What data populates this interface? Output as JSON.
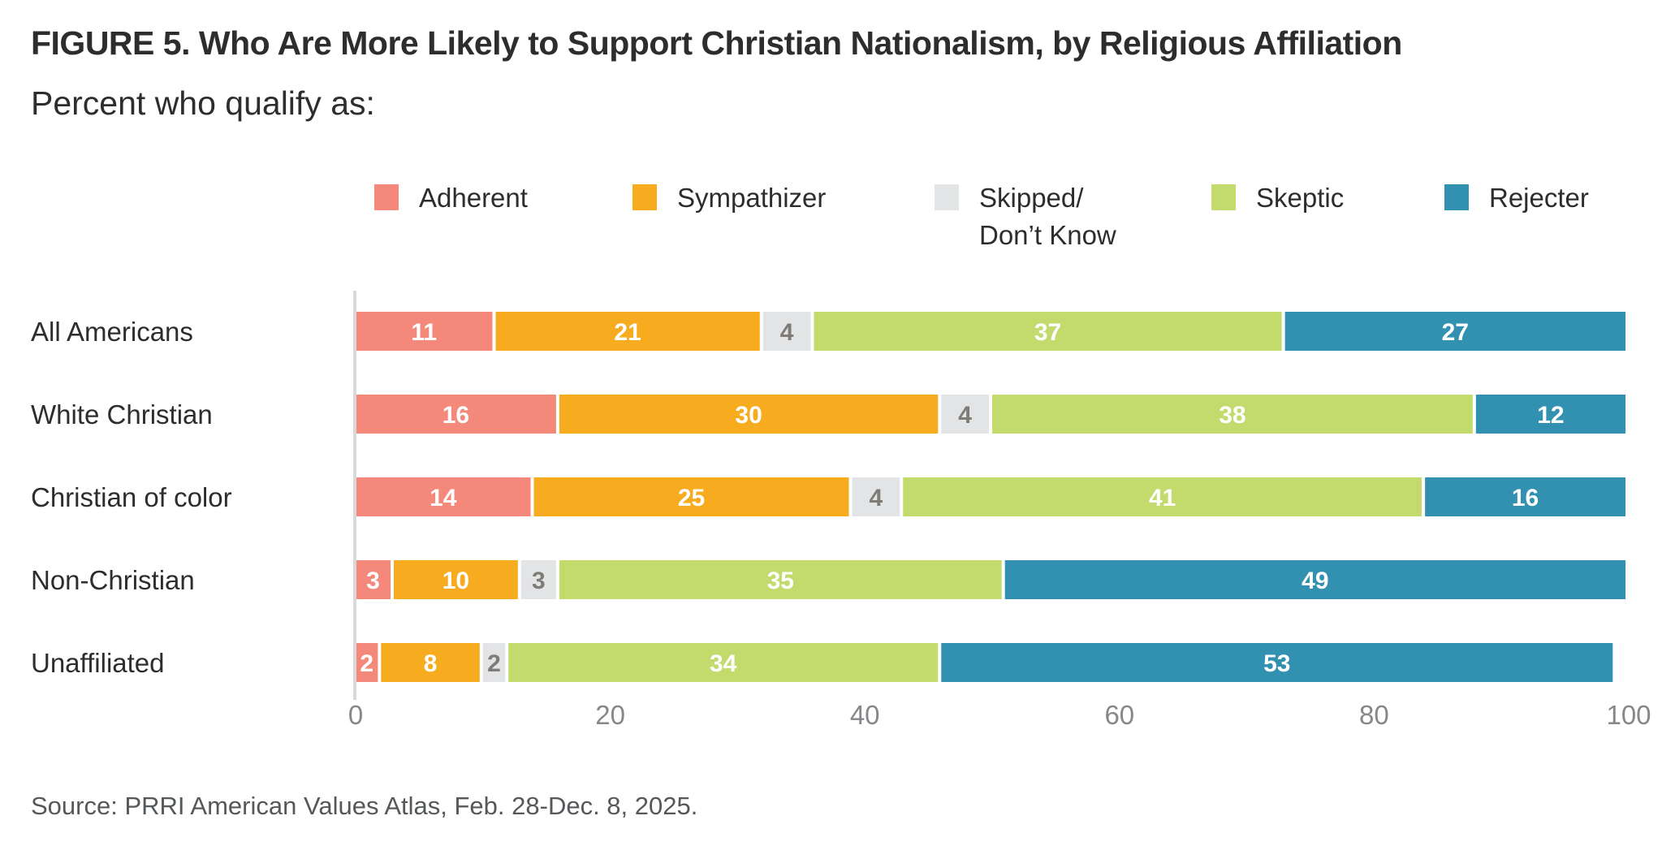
{
  "chart_data": {
    "type": "bar",
    "orientation": "horizontal",
    "stacked": true,
    "title": "FIGURE 5.  Who Are More Likely to Support Christian Nationalism, by Religious Affiliation",
    "subtitle": "Percent who qualify as:",
    "source": "Source: PRRI American Values Atlas, Feb. 28-Dec. 8, 2025.",
    "xlabel": "",
    "ylabel": "",
    "xlim": [
      0,
      100
    ],
    "x_ticks": [
      "0",
      "20",
      "40",
      "60",
      "80",
      "100"
    ],
    "grid": false,
    "legend_position": "top",
    "categories": [
      "All Americans",
      "White Christian",
      "Christian of color",
      "Non-Christian",
      "Unaffiliated"
    ],
    "series": [
      {
        "name": "Adherent",
        "legend_lines": [
          "Adherent"
        ],
        "color": "#f4897b",
        "label_color": "#ffffff",
        "values": [
          11,
          16,
          14,
          3,
          2
        ]
      },
      {
        "name": "Sympathizer",
        "legend_lines": [
          "Sympathizer"
        ],
        "color": "#f7ab1f",
        "label_color": "#ffffff",
        "values": [
          21,
          30,
          25,
          10,
          8
        ]
      },
      {
        "name": "Skipped/ Don't Know",
        "legend_lines": [
          "Skipped/",
          "Don’t Know"
        ],
        "color": "#e3e4e5",
        "label_color": "#7f7b76",
        "values": [
          4,
          4,
          4,
          3,
          2
        ]
      },
      {
        "name": "Skeptic",
        "legend_lines": [
          "Skeptic"
        ],
        "color": "#c3da6d",
        "label_color": "#ffffff",
        "values": [
          37,
          38,
          41,
          35,
          34
        ]
      },
      {
        "name": "Rejecter",
        "legend_lines": [
          "Rejecter"
        ],
        "color": "#3291b0",
        "label_color": "#ffffff",
        "values": [
          27,
          12,
          16,
          49,
          53
        ]
      }
    ]
  }
}
